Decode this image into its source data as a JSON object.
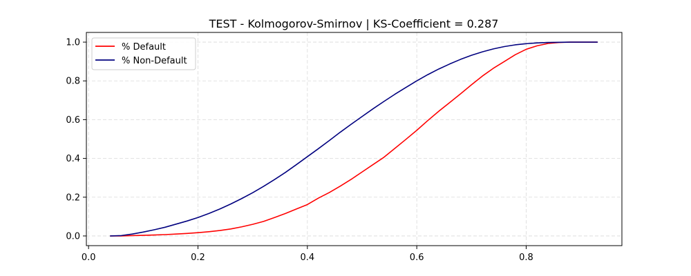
{
  "chart_data": {
    "type": "line",
    "title": "TEST - Kolmogorov-Smirnov | KS-Coefficient = 0.287",
    "xlabel": "",
    "ylabel": "",
    "xlim": [
      -0.004,
      0.975
    ],
    "ylim": [
      -0.05,
      1.05
    ],
    "x_ticks": [
      0.0,
      0.2,
      0.4,
      0.6,
      0.8
    ],
    "x_tick_labels": [
      "0.0",
      "0.2",
      "0.4",
      "0.6",
      "0.8"
    ],
    "y_ticks": [
      0.0,
      0.2,
      0.4,
      0.6,
      0.8,
      1.0
    ],
    "y_tick_labels": [
      "0.0",
      "0.2",
      "0.4",
      "0.6",
      "0.8",
      "1.0"
    ],
    "grid": true,
    "legend_position": "top-left",
    "series": [
      {
        "name": "% Default",
        "color": "#ff0000",
        "x": [
          0.04,
          0.06,
          0.08,
          0.1,
          0.12,
          0.14,
          0.16,
          0.18,
          0.2,
          0.22,
          0.24,
          0.26,
          0.28,
          0.3,
          0.32,
          0.34,
          0.36,
          0.38,
          0.4,
          0.42,
          0.44,
          0.46,
          0.48,
          0.5,
          0.52,
          0.54,
          0.56,
          0.58,
          0.6,
          0.62,
          0.64,
          0.66,
          0.68,
          0.7,
          0.72,
          0.74,
          0.76,
          0.78,
          0.8,
          0.82,
          0.84,
          0.86,
          0.88,
          0.9,
          0.93
        ],
        "y": [
          0.0,
          0.0,
          0.002,
          0.003,
          0.005,
          0.007,
          0.01,
          0.013,
          0.017,
          0.022,
          0.028,
          0.036,
          0.047,
          0.06,
          0.075,
          0.095,
          0.116,
          0.139,
          0.162,
          0.195,
          0.224,
          0.257,
          0.292,
          0.33,
          0.368,
          0.406,
          0.452,
          0.498,
          0.545,
          0.595,
          0.643,
          0.688,
          0.733,
          0.78,
          0.825,
          0.865,
          0.9,
          0.935,
          0.963,
          0.981,
          0.993,
          0.998,
          1.0,
          1.0,
          1.0
        ]
      },
      {
        "name": "% Non-Default",
        "color": "#00007f",
        "x": [
          0.04,
          0.06,
          0.08,
          0.1,
          0.12,
          0.14,
          0.16,
          0.18,
          0.2,
          0.22,
          0.24,
          0.26,
          0.28,
          0.3,
          0.32,
          0.34,
          0.36,
          0.38,
          0.4,
          0.42,
          0.44,
          0.46,
          0.48,
          0.5,
          0.52,
          0.54,
          0.56,
          0.58,
          0.6,
          0.62,
          0.64,
          0.66,
          0.68,
          0.7,
          0.72,
          0.74,
          0.76,
          0.78,
          0.8,
          0.82,
          0.84,
          0.86,
          0.88,
          0.9,
          0.93
        ],
        "y": [
          0.0,
          0.002,
          0.01,
          0.02,
          0.032,
          0.045,
          0.061,
          0.077,
          0.095,
          0.116,
          0.139,
          0.165,
          0.193,
          0.223,
          0.256,
          0.291,
          0.328,
          0.368,
          0.409,
          0.45,
          0.492,
          0.535,
          0.576,
          0.616,
          0.656,
          0.694,
          0.731,
          0.766,
          0.8,
          0.832,
          0.861,
          0.887,
          0.911,
          0.932,
          0.95,
          0.965,
          0.977,
          0.986,
          0.992,
          0.996,
          0.998,
          0.999,
          1.0,
          1.0,
          1.0
        ]
      }
    ]
  }
}
